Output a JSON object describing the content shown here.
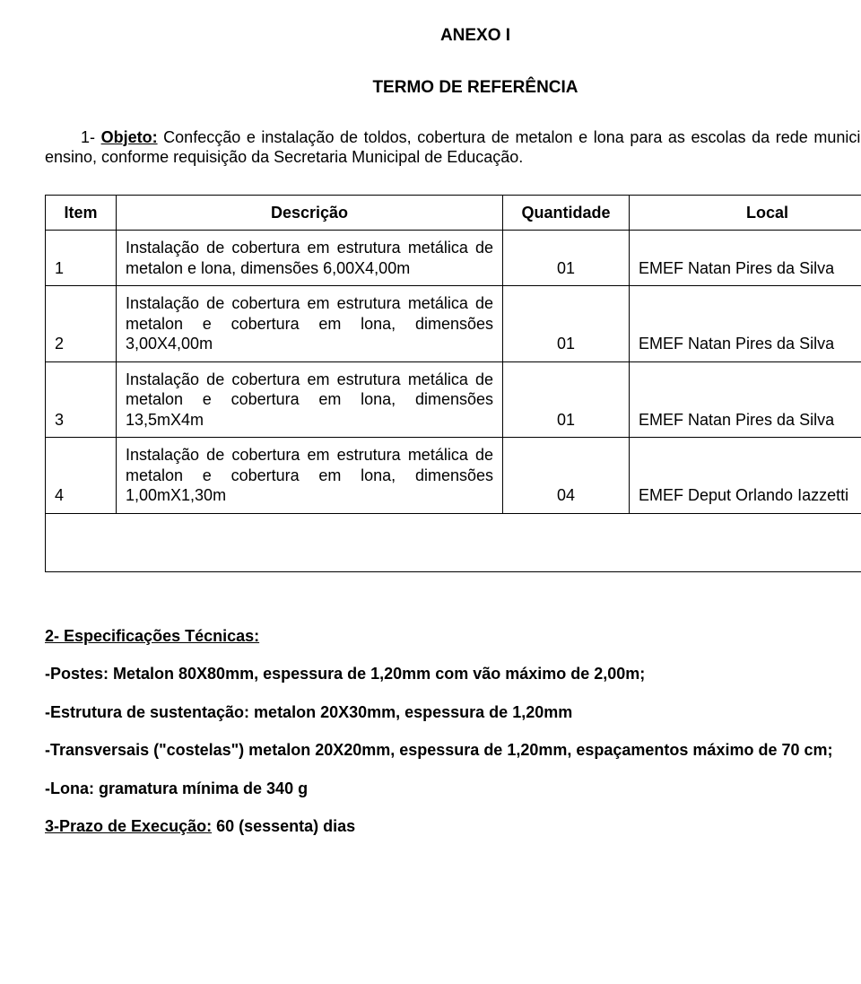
{
  "title": "ANEXO I",
  "subtitle": "TERMO DE REFERÊNCIA",
  "objeto": {
    "prefix": "1- ",
    "label": "Objeto:",
    "text": " Confecção e instalação de toldos, cobertura de metalon e lona para as escolas da rede municipal de ensino, conforme requisição da Secretaria Municipal de Educação."
  },
  "table": {
    "headers": {
      "item": "Item",
      "descricao": "Descrição",
      "quantidade": "Quantidade",
      "local": "Local"
    },
    "rows": [
      {
        "item": "1",
        "descricao": "Instalação de cobertura em estrutura metálica de metalon e lona, dimensões 6,00X4,00m",
        "quantidade": "01",
        "local": "EMEF Natan Pires da Silva"
      },
      {
        "item": "2",
        "descricao": "Instalação de cobertura em estrutura metálica de metalon e cobertura em lona, dimensões 3,00X4,00m",
        "quantidade": "01",
        "local": "EMEF Natan Pires da Silva"
      },
      {
        "item": "3",
        "descricao": "Instalação de cobertura em estrutura metálica de metalon e cobertura em lona, dimensões 13,5mX4m",
        "quantidade": "01",
        "local": "EMEF Natan Pires da Silva"
      },
      {
        "item": "4",
        "descricao": "Instalação de cobertura em estrutura metálica de metalon e cobertura em lona, dimensões 1,00mX1,30m",
        "quantidade": "04",
        "local": "EMEF Deput Orlando Iazzetti"
      }
    ]
  },
  "especificacoes": {
    "heading": "2- Especificações Técnicas:",
    "lines": [
      "-Postes: Metalon 80X80mm, espessura de 1,20mm com vão máximo de 2,00m;",
      "-Estrutura de sustentação: metalon 20X30mm, espessura de 1,20mm",
      "-Transversais (\"costelas\") metalon 20X20mm, espessura de 1,20mm, espaçamentos máximo de 70 cm;",
      "-Lona: gramatura mínima de 340 g"
    ]
  },
  "prazo": {
    "label": "3-Prazo de Execução:",
    "value": "  60 (sessenta) dias"
  }
}
